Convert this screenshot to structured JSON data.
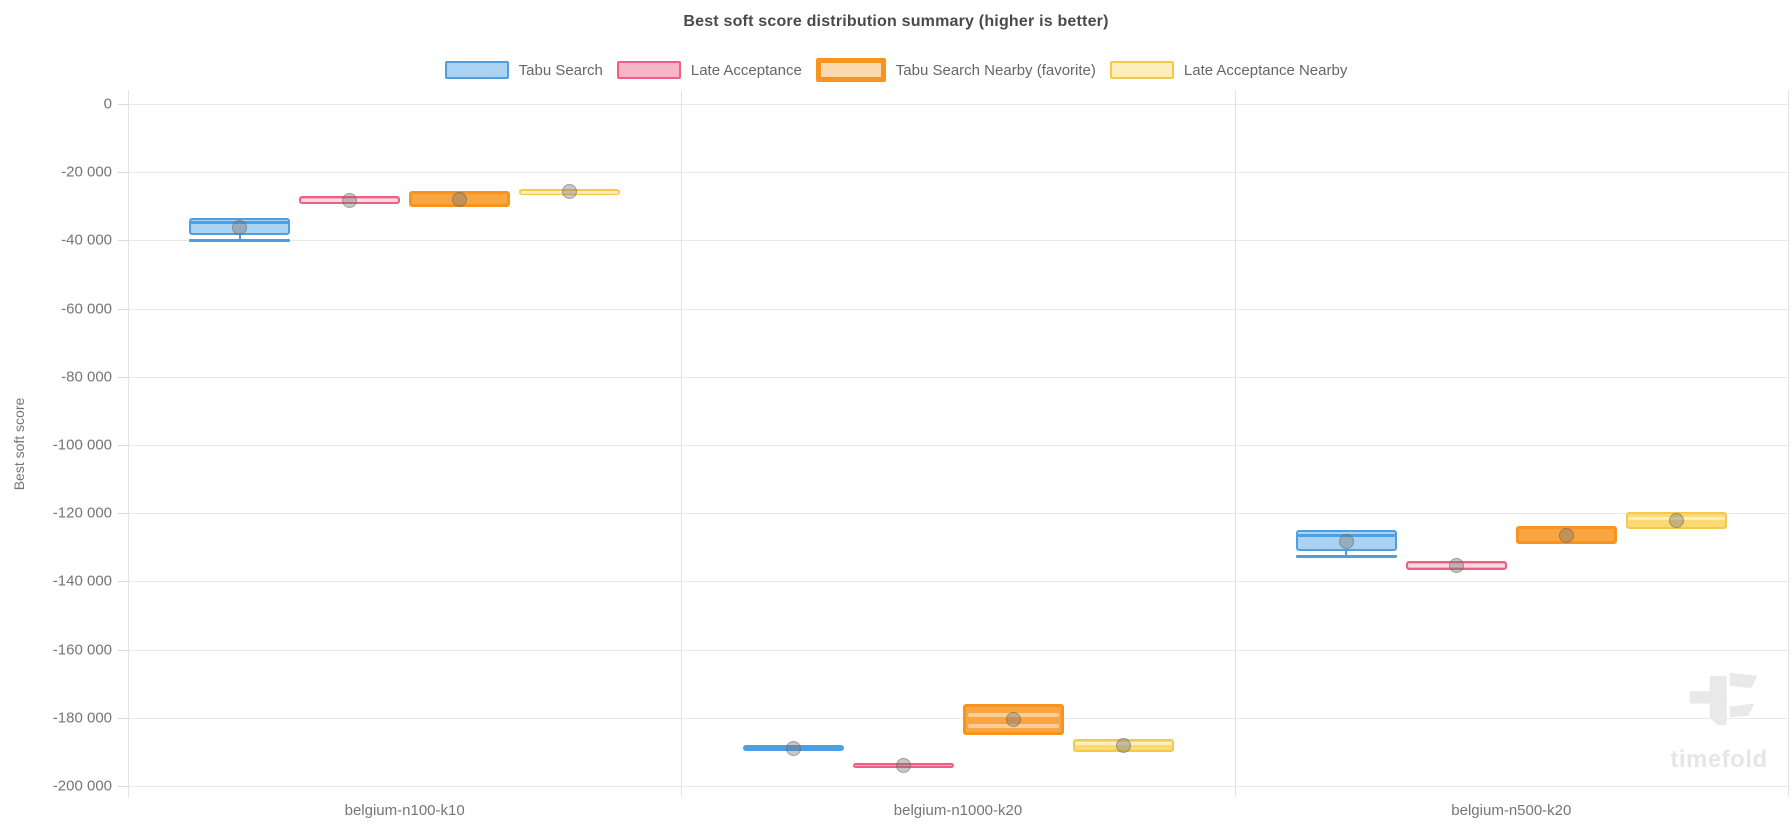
{
  "title": "Best soft score distribution summary (higher is better)",
  "watermark": "timefold",
  "colors": {
    "grid": "#e9e9e9",
    "axis_line": "#e3e3e3",
    "tick_text": "#757575",
    "title_text": "#4a4a4a",
    "legend_text": "#666666",
    "mean_marker": "rgba(115,115,115,0.40)"
  },
  "chart_data": {
    "type": "boxplot",
    "title": "Best soft score distribution summary (higher is better)",
    "xlabel": "",
    "ylabel": "Best soft score",
    "ylim": [
      -200000,
      0
    ],
    "ytick_step": 20000,
    "ytick_labels": [
      "0",
      "-20 000",
      "-40 000",
      "-60 000",
      "-80 000",
      "-100 000",
      "-120 000",
      "-140 000",
      "-160 000",
      "-180 000",
      "-200 000"
    ],
    "grid": true,
    "legend_position": "top",
    "categories": [
      "belgium-n100-k10",
      "belgium-n1000-k20",
      "belgium-n500-k20"
    ],
    "series": [
      {
        "name": "Tabu Search",
        "border_color": "#4d9fe4",
        "fill_color": "#abd3f1",
        "legend_fill": "#abd3f1",
        "median_color": "#4d9fe4",
        "favorite": false,
        "boxes": [
          {
            "q1": -38400,
            "q3": -33400,
            "median": -34500,
            "whisker_min": -39900,
            "mean": -36100
          },
          {
            "q1": -189800,
            "q3": -188000,
            "median": -188900,
            "mean": -188900
          },
          {
            "q1": -131100,
            "q3": -124900,
            "median": -126500,
            "whisker_min": -132600,
            "mean": -128200
          }
        ]
      },
      {
        "name": "Late Acceptance",
        "border_color": "#ef5f84",
        "fill_color": "#f8abc0",
        "legend_fill": "#f8b4c8",
        "median_color": "rgba(255,255,255,0.55)",
        "favorite": false,
        "boxes": [
          {
            "q1": -29300,
            "q3": -27000,
            "median": -28200,
            "mean": -28200
          },
          {
            "q1": -194700,
            "q3": -193300,
            "mean": -194000
          },
          {
            "q1": -136700,
            "q3": -134000,
            "median": -135300,
            "mean": -135300
          }
        ]
      },
      {
        "name": "Tabu Search Nearby (favorite)",
        "border_color": "#f6941e",
        "fill_color": "#f9a542",
        "legend_fill": "#fcd8ad",
        "median_color": "rgba(255,255,255,0.45)",
        "favorite": true,
        "boxes": [
          {
            "q1": -30200,
            "q3": -25500,
            "mean": -27900
          },
          {
            "q1": -185000,
            "q3": -176000,
            "inner_lines": [
              -179200,
              -182400
            ],
            "mean": -180600
          },
          {
            "q1": -129000,
            "q3": -123800,
            "mean": -126400
          }
        ]
      },
      {
        "name": "Late Acceptance Nearby",
        "border_color": "#f3c94b",
        "fill_color": "#fbda74",
        "legend_fill": "#fdeebb",
        "median_color": "rgba(255,255,255,0.55)",
        "favorite": false,
        "boxes": [
          {
            "q1": -26700,
            "q3": -24900,
            "median": -25800,
            "mean": -25800
          },
          {
            "q1": -190000,
            "q3": -186200,
            "median": -187400,
            "mean": -188000
          },
          {
            "q1": -124600,
            "q3": -119600,
            "median": -121300,
            "mean": -122000
          }
        ]
      }
    ]
  }
}
